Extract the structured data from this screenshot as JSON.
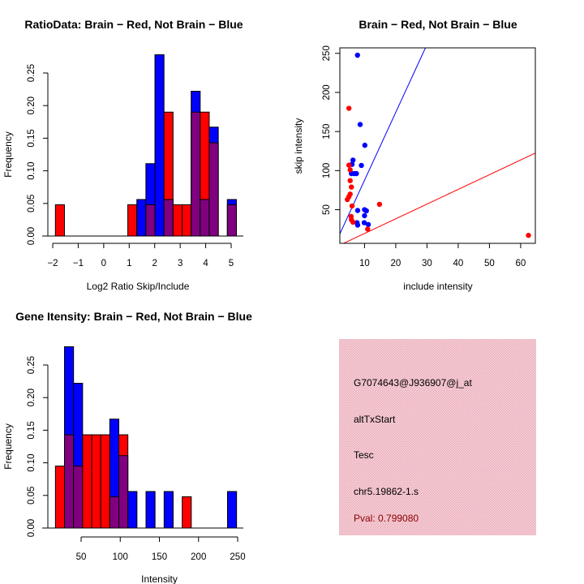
{
  "colors": {
    "red": "#ff0000",
    "blue": "#0000ff",
    "overlap": "#800080",
    "panel": "#f3c6d0",
    "pval": "#8b0000"
  },
  "chart_data": [
    {
      "type": "bar",
      "id": "ratio",
      "title": "RatioData: Brain − Red, Not Brain − Blue",
      "xlabel": "Log2 Ratio Skip/Include",
      "ylabel": "Frequency",
      "bin_start": -1.895,
      "bin_width": 0.355,
      "xticks": [
        -2,
        -1,
        0,
        1,
        2,
        3,
        4,
        5
      ],
      "xtick_labels": [
        "−2",
        "−1",
        "0",
        "1",
        "2",
        "3",
        "4",
        "5"
      ],
      "yticks": [
        0,
        0.05,
        0.1,
        0.15,
        0.2,
        0.25
      ],
      "ytick_labels": [
        "0.00",
        "0.05",
        "0.10",
        "0.15",
        "0.20",
        "0.25"
      ],
      "series": [
        {
          "name": "Brain",
          "color": "red",
          "values": [
            0.048,
            0,
            0,
            0,
            0,
            0,
            0,
            0,
            0.048,
            0,
            0.048,
            0,
            0.19,
            0.048,
            0.048,
            0.19,
            0.19,
            0.143,
            0,
            0.048
          ]
        },
        {
          "name": "Not Brain",
          "color": "blue",
          "values": [
            0,
            0,
            0,
            0,
            0,
            0,
            0,
            0,
            0,
            0.056,
            0.111,
            0.278,
            0.056,
            0,
            0,
            0.222,
            0.056,
            0.167,
            0,
            0.056
          ]
        }
      ]
    },
    {
      "type": "scatter",
      "id": "scatter",
      "title": "Brain − Red, Not Brain − Blue",
      "xlabel": "include intensity",
      "ylabel": "skip intensity",
      "xlim": [
        2.1,
        64.7
      ],
      "ylim": [
        7,
        257
      ],
      "xticks": [
        10,
        20,
        30,
        40,
        50,
        60
      ],
      "yticks": [
        50,
        100,
        150,
        200,
        250
      ],
      "series": [
        {
          "name": "Not Brain",
          "color": "blue",
          "points": [
            [
              7.75,
              247.6
            ],
            [
              8.6,
              159
            ],
            [
              10.1,
              132.4
            ],
            [
              6.3,
              113.4
            ],
            [
              6.0,
              108
            ],
            [
              9.0,
              106.6
            ],
            [
              5.8,
              96.2
            ],
            [
              6.7,
              96.2
            ],
            [
              7.4,
              96.2
            ],
            [
              7.8,
              49
            ],
            [
              10,
              50
            ],
            [
              10.6,
              48.6
            ],
            [
              10,
              42.4
            ],
            [
              7.6,
              33.4
            ],
            [
              7.8,
              30.3
            ],
            [
              9.9,
              33.4
            ],
            [
              11.2,
              31
            ]
          ],
          "line": {
            "slope": 8.68,
            "intercept": 0.9
          }
        },
        {
          "name": "Brain",
          "color": "red",
          "points": [
            [
              5.0,
              179.7
            ],
            [
              5.0,
              107
            ],
            [
              5.4,
              101
            ],
            [
              5.4,
              87.2
            ],
            [
              5.8,
              79
            ],
            [
              5.4,
              70
            ],
            [
              5.0,
              66.6
            ],
            [
              4.5,
              63
            ],
            [
              6.0,
              54.8
            ],
            [
              5.7,
              41.4
            ],
            [
              5.8,
              37.2
            ],
            [
              6.3,
              34.1
            ],
            [
              11.0,
              25.2
            ],
            [
              14.8,
              56.9
            ],
            [
              62.5,
              17.2
            ]
          ],
          "line": {
            "slope": 1.88,
            "intercept": 0.8
          }
        }
      ]
    },
    {
      "type": "bar",
      "id": "intensity",
      "title": "Gene Itensity: Brain − Red, Not Brain − Blue",
      "xlabel": "Intensity",
      "ylabel": "Frequency",
      "bin_start": 17.2,
      "bin_width": 11.57,
      "xticks": [
        50,
        100,
        150,
        200,
        250
      ],
      "xtick_labels": [
        "50",
        "100",
        "150",
        "200",
        "250"
      ],
      "yticks": [
        0,
        0.05,
        0.1,
        0.15,
        0.2,
        0.25
      ],
      "ytick_labels": [
        "0.00",
        "0.05",
        "0.10",
        "0.15",
        "0.20",
        "0.25"
      ],
      "series": [
        {
          "name": "Brain",
          "color": "red",
          "values": [
            0.095,
            0.143,
            0.095,
            0.143,
            0.143,
            0.143,
            0.048,
            0.143,
            0,
            0,
            0,
            0,
            0,
            0,
            0.048,
            0,
            0,
            0,
            0,
            0
          ]
        },
        {
          "name": "Not Brain",
          "color": "blue",
          "values": [
            0,
            0.278,
            0.222,
            0,
            0,
            0,
            0.167,
            0.111,
            0.056,
            0,
            0.056,
            0,
            0.056,
            0,
            0,
            0,
            0,
            0,
            0,
            0.056
          ]
        }
      ]
    }
  ],
  "info_panel": {
    "lines": [
      "G7074643@J936907@j_at",
      "altTxStart",
      "Tesc",
      "chr5.19862-1.s"
    ],
    "pval": "Pval: 0.799080"
  }
}
